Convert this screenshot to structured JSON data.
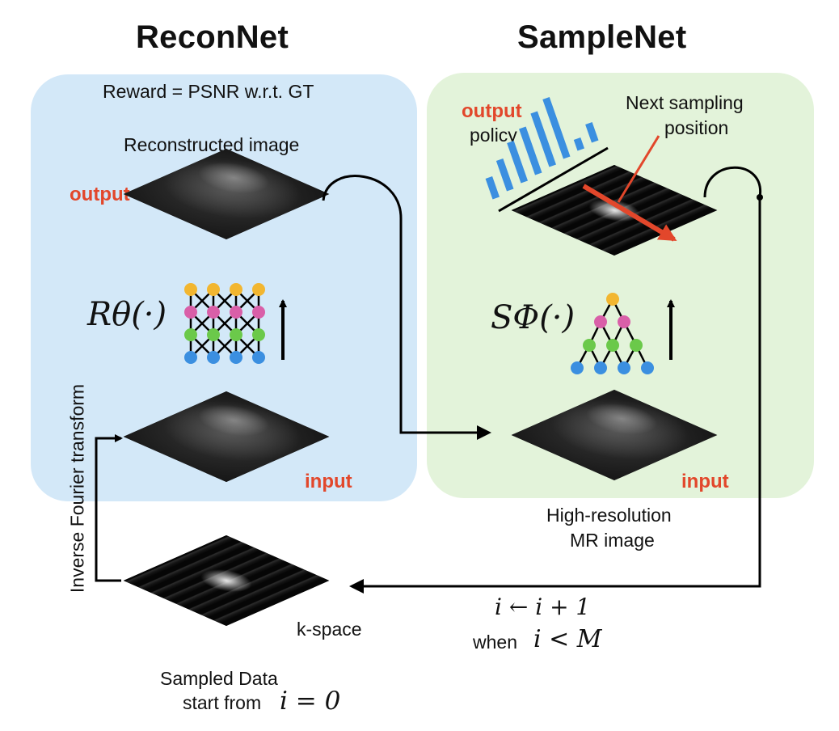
{
  "recon": {
    "title": "ReconNet",
    "reward": "Reward = PSNR w.r.t. GT",
    "reconstructed_label": "Reconstructed image",
    "output_label": "output",
    "input_label": "input",
    "operator": "Rθ(·)"
  },
  "sample": {
    "title": "SampleNet",
    "output_label": "output",
    "policy_label": "policy",
    "next_line1": "Next sampling",
    "next_line2": "position",
    "input_label": "input",
    "hr_line1": "High-resolution",
    "hr_line2": "MR image",
    "operator": "SΦ(·)"
  },
  "loop": {
    "ift_label": "Inverse Fourier transform",
    "kspace_label": "k-space",
    "sampled_line1": "Sampled Data",
    "start_text": "start from",
    "start_math": "i = 0",
    "update_math": "i ← i + 1",
    "when_text": "when",
    "when_math": "i < M"
  },
  "colors": {
    "recon_panel": "#d3e8f8",
    "sample_panel": "#e3f3da",
    "highlight_red": "#e2472b",
    "policy_bar_blue": "#3b8fe0",
    "node_yellow": "#f2b630",
    "node_pink": "#d95fa8",
    "node_green": "#6bc94a",
    "node_blue": "#3b8fe0"
  },
  "policy_bars": [
    0.34,
    0.5,
    0.66,
    0.76,
    0.88,
    0.98,
    0.18,
    0.3
  ]
}
